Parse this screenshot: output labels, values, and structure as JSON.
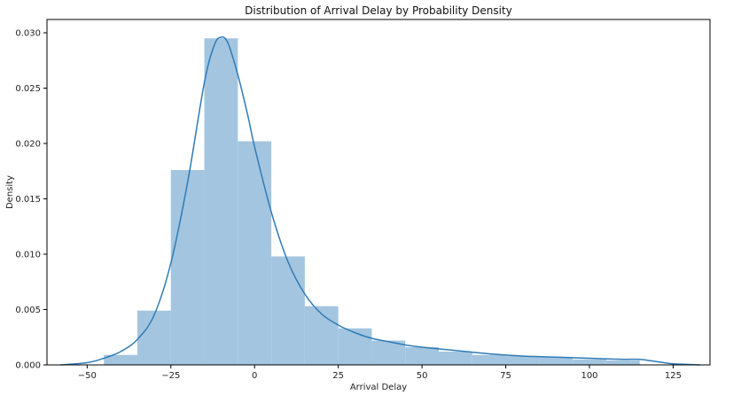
{
  "chart_data": {
    "type": "bar",
    "title": "Distribution of Arrival Delay by Probability Density",
    "xlabel": "Arrival Delay",
    "ylabel": "Density",
    "xlim": [
      -62,
      136
    ],
    "ylim": [
      0,
      0.0312
    ],
    "xticks": [
      -50,
      -25,
      0,
      25,
      50,
      75,
      100,
      125
    ],
    "yticks": [
      0.0,
      0.005,
      0.01,
      0.015,
      0.02,
      0.025,
      0.03
    ],
    "ytick_labels": [
      "0.000",
      "0.005",
      "0.010",
      "0.015",
      "0.020",
      "0.025",
      "0.030"
    ],
    "grid": false,
    "legend": "none",
    "colors": {
      "bars": "#a3c5e0",
      "kde": "#2f7bb6"
    },
    "histogram": {
      "bins": [
        {
          "x0": -45,
          "x1": -35,
          "density": 0.0009
        },
        {
          "x0": -35,
          "x1": -25,
          "density": 0.0049
        },
        {
          "x0": -25,
          "x1": -15,
          "density": 0.0176
        },
        {
          "x0": -15,
          "x1": -5,
          "density": 0.0295
        },
        {
          "x0": -5,
          "x1": 5,
          "density": 0.0202
        },
        {
          "x0": 5,
          "x1": 15,
          "density": 0.0098
        },
        {
          "x0": 15,
          "x1": 25,
          "density": 0.0053
        },
        {
          "x0": 25,
          "x1": 35,
          "density": 0.0033
        },
        {
          "x0": 35,
          "x1": 45,
          "density": 0.0022
        },
        {
          "x0": 45,
          "x1": 55,
          "density": 0.0016
        },
        {
          "x0": 55,
          "x1": 65,
          "density": 0.0012
        },
        {
          "x0": 65,
          "x1": 75,
          "density": 0.0009
        },
        {
          "x0": 75,
          "x1": 85,
          "density": 0.0008
        },
        {
          "x0": 85,
          "x1": 95,
          "density": 0.0007
        },
        {
          "x0": 95,
          "x1": 105,
          "density": 0.0005
        },
        {
          "x0": 105,
          "x1": 115,
          "density": 0.0004
        }
      ]
    },
    "kde": {
      "x": [
        -58,
        -50,
        -45,
        -40,
        -35,
        -30,
        -25,
        -20,
        -15,
        -12,
        -10,
        -8,
        -5,
        -2,
        0,
        5,
        10,
        15,
        20,
        25,
        30,
        35,
        40,
        45,
        50,
        60,
        70,
        80,
        90,
        100,
        110,
        115,
        120,
        125,
        133
      ],
      "y": [
        0.0,
        0.0002,
        0.0006,
        0.0012,
        0.0023,
        0.0045,
        0.0092,
        0.0165,
        0.0255,
        0.0289,
        0.0296,
        0.0291,
        0.0262,
        0.0225,
        0.0197,
        0.0138,
        0.0093,
        0.0064,
        0.0046,
        0.0036,
        0.0029,
        0.0024,
        0.0021,
        0.0018,
        0.0016,
        0.0013,
        0.001,
        0.0008,
        0.0007,
        0.0006,
        0.0005,
        0.0005,
        0.0003,
        0.0001,
        0.0
      ]
    }
  }
}
